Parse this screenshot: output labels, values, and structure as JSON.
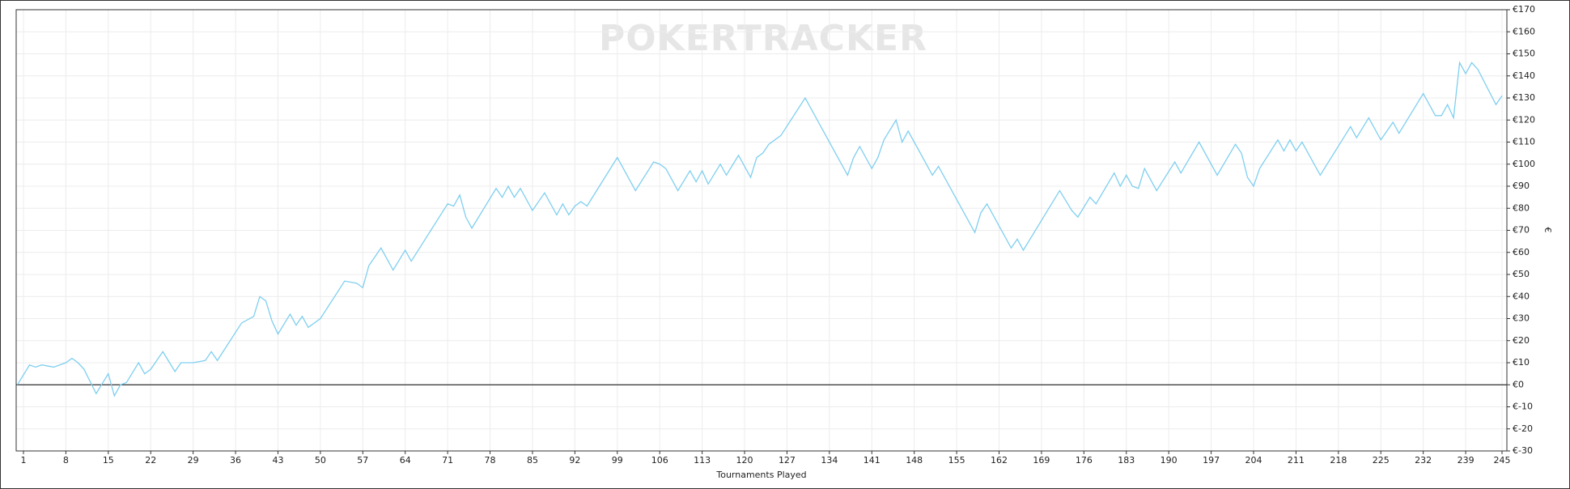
{
  "chart_data": {
    "type": "line",
    "watermark": "POKERTRACKER",
    "x_label": "Tournaments Played",
    "y_label": "€",
    "color": "#7fcff0",
    "grid": true,
    "x": [
      0,
      2,
      3,
      4,
      6,
      8,
      9,
      10,
      11,
      13,
      15,
      16,
      17,
      18,
      20,
      21,
      22,
      24,
      26,
      27,
      29,
      31,
      32,
      33,
      37,
      39,
      40,
      41,
      42,
      43,
      45,
      46,
      47,
      48,
      50,
      54,
      56,
      57,
      58,
      60,
      62,
      64,
      65,
      71,
      72,
      73,
      74,
      75,
      79,
      80,
      81,
      82,
      83,
      85,
      87,
      89,
      90,
      91,
      92,
      93,
      94,
      99,
      102,
      105,
      106,
      107,
      109,
      111,
      112,
      113,
      114,
      116,
      117,
      119,
      121,
      122,
      123,
      124,
      126,
      130,
      137,
      138,
      139,
      141,
      142,
      143,
      145,
      146,
      147,
      151,
      152,
      158,
      159,
      160,
      164,
      165,
      166,
      172,
      174,
      175,
      177,
      178,
      181,
      182,
      183,
      184,
      185,
      186,
      188,
      191,
      192,
      195,
      198,
      201,
      202,
      203,
      204,
      205,
      208,
      209,
      210,
      211,
      212,
      215,
      220,
      221,
      223,
      225,
      227,
      228,
      232,
      234,
      235,
      236,
      237,
      238,
      239,
      240,
      241,
      244,
      245
    ],
    "values": [
      0,
      9,
      8,
      9,
      8,
      10,
      12,
      10,
      7,
      -4,
      5,
      -5,
      0,
      1,
      10,
      5,
      7,
      15,
      6,
      10,
      10,
      11,
      15,
      11,
      28,
      31,
      40,
      38,
      29,
      23,
      32,
      27,
      31,
      26,
      30,
      47,
      46,
      44,
      54,
      62,
      52,
      61,
      56,
      82,
      81,
      86,
      76,
      71,
      89,
      85,
      90,
      85,
      89,
      79,
      87,
      77,
      82,
      77,
      81,
      83,
      81,
      103,
      88,
      101,
      100,
      98,
      88,
      97,
      92,
      97,
      91,
      100,
      95,
      104,
      94,
      103,
      105,
      109,
      113,
      130,
      95,
      103,
      108,
      98,
      103,
      111,
      120,
      110,
      115,
      95,
      99,
      69,
      78,
      82,
      62,
      66,
      61,
      88,
      79,
      76,
      85,
      82,
      96,
      90,
      95,
      90,
      89,
      98,
      88,
      101,
      96,
      110,
      95,
      109,
      105,
      94,
      90,
      98,
      111,
      106,
      111,
      106,
      110,
      95,
      117,
      112,
      121,
      111,
      119,
      114,
      132,
      122,
      122,
      127,
      121,
      146,
      141,
      146,
      143,
      127,
      131
    ],
    "xlim": [
      -0.2,
      245.8
    ],
    "xticks": [
      1,
      8,
      15,
      22,
      29,
      36,
      43,
      50,
      57,
      64,
      71,
      78,
      85,
      92,
      99,
      106,
      113,
      120,
      127,
      134,
      141,
      148,
      155,
      162,
      169,
      176,
      183,
      190,
      197,
      204,
      211,
      218,
      225,
      232,
      239,
      245
    ],
    "ylim": [
      -30,
      170
    ],
    "yticks": [
      {
        "value": -30,
        "label": "€-30"
      },
      {
        "value": -20,
        "label": "€-20"
      },
      {
        "value": -10,
        "label": "€-10"
      },
      {
        "value": 0,
        "label": "€0"
      },
      {
        "value": 10,
        "label": "€10"
      },
      {
        "value": 20,
        "label": "€20"
      },
      {
        "value": 30,
        "label": "€30"
      },
      {
        "value": 40,
        "label": "€40"
      },
      {
        "value": 50,
        "label": "€50"
      },
      {
        "value": 60,
        "label": "€60"
      },
      {
        "value": 70,
        "label": "€70"
      },
      {
        "value": 80,
        "label": "€80"
      },
      {
        "value": 90,
        "label": "€90"
      },
      {
        "value": 100,
        "label": "€100"
      },
      {
        "value": 110,
        "label": "€110"
      },
      {
        "value": 120,
        "label": "€120"
      },
      {
        "value": 130,
        "label": "€130"
      },
      {
        "value": 140,
        "label": "€140"
      },
      {
        "value": 150,
        "label": "€150"
      },
      {
        "value": 160,
        "label": "€160"
      },
      {
        "value": 170,
        "label": "€170"
      }
    ]
  }
}
